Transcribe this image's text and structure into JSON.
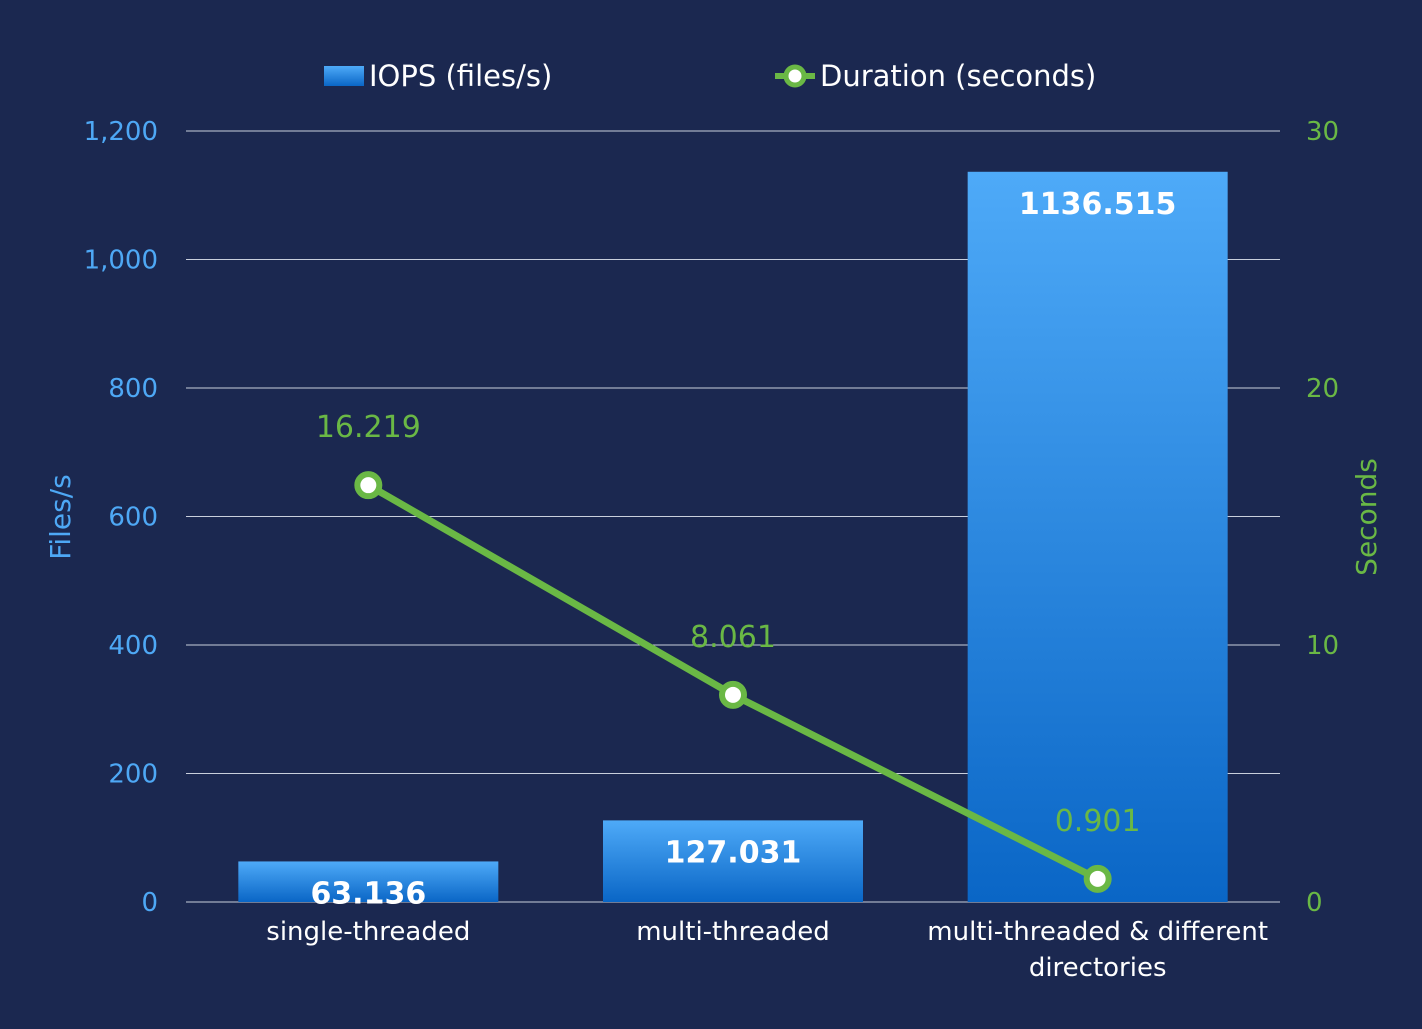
{
  "chart_data": {
    "type": "bar",
    "categories": [
      "single-threaded",
      "multi-threaded",
      "multi-threaded & different directories"
    ],
    "series": [
      {
        "name": "IOPS (files/s)",
        "type": "bar",
        "axis": "left",
        "values": [
          63.136,
          127.031,
          1136.515
        ],
        "labels": [
          "63.136",
          "127.031",
          "1136.515"
        ]
      },
      {
        "name": "Duration (seconds)",
        "type": "line",
        "axis": "right",
        "values": [
          16.219,
          8.061,
          0.901
        ],
        "labels": [
          "16.219",
          "8.061",
          "0.901"
        ]
      }
    ],
    "ylabel": "Files/s",
    "y2label": "Seconds",
    "ylim": [
      0,
      1200
    ],
    "y2lim": [
      0,
      30
    ],
    "yticks": [
      "0",
      "200",
      "400",
      "600",
      "800",
      "1,000",
      "1,200"
    ],
    "y2ticks": [
      "0",
      "10",
      "20",
      "30"
    ],
    "grid": true,
    "legend_position": "top-center",
    "colors": {
      "background": "#1b2850",
      "bar_top": "#4eaaf8",
      "bar_bottom": "#0a66c6",
      "line": "#6ab845",
      "left_axis": "#4ea8f5",
      "right_axis": "#6ab845"
    }
  }
}
